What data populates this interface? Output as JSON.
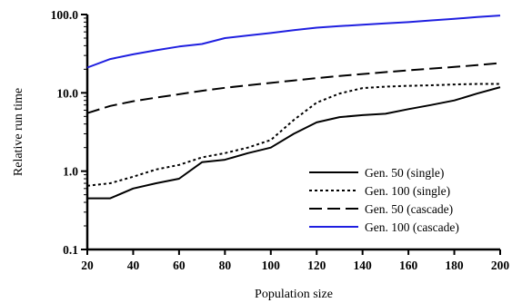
{
  "chart_data": {
    "type": "line",
    "xlabel": "Population size",
    "ylabel": "Relative run time",
    "xlim": [
      20,
      200
    ],
    "ylim": [
      0.1,
      100.0
    ],
    "yscale": "log",
    "xticks": [
      "20",
      "40",
      "60",
      "80",
      "100",
      "120",
      "140",
      "160",
      "180",
      "200"
    ],
    "yticks": [
      "0.1",
      "1.0",
      "10.0",
      "100.0"
    ],
    "legend_position": "bottom-right",
    "series": [
      {
        "name": "Gen. 50 (single)",
        "style": "solid",
        "color": "#000000",
        "x": [
          20,
          30,
          40,
          50,
          60,
          70,
          80,
          90,
          100,
          110,
          120,
          130,
          140,
          150,
          160,
          170,
          180,
          190,
          200
        ],
        "y": [
          0.45,
          0.45,
          0.6,
          0.7,
          0.8,
          1.3,
          1.4,
          1.7,
          2.0,
          3.0,
          4.2,
          4.9,
          5.2,
          5.4,
          6.2,
          7.0,
          8.0,
          9.8,
          11.8
        ]
      },
      {
        "name": "Gen. 100 (single)",
        "style": "dotted",
        "color": "#000000",
        "x": [
          20,
          30,
          40,
          50,
          60,
          70,
          80,
          90,
          100,
          110,
          120,
          130,
          140,
          150,
          160,
          170,
          180,
          190,
          200
        ],
        "y": [
          0.65,
          0.7,
          0.85,
          1.05,
          1.2,
          1.5,
          1.7,
          2.0,
          2.5,
          4.5,
          7.5,
          9.8,
          11.5,
          12.0,
          12.3,
          12.5,
          12.8,
          13.0,
          13.0
        ]
      },
      {
        "name": "Gen. 50 (cascade)",
        "style": "dashed",
        "color": "#000000",
        "x": [
          20,
          30,
          40,
          50,
          60,
          70,
          80,
          90,
          100,
          110,
          120,
          130,
          140,
          150,
          160,
          170,
          180,
          190,
          200
        ],
        "y": [
          5.5,
          6.8,
          7.8,
          8.7,
          9.6,
          10.6,
          11.6,
          12.5,
          13.4,
          14.4,
          15.4,
          16.4,
          17.4,
          18.4,
          19.4,
          20.4,
          21.4,
          22.6,
          24.0
        ]
      },
      {
        "name": "Gen. 100 (cascade)",
        "style": "solid",
        "color": "#1f1fe0",
        "x": [
          20,
          30,
          40,
          50,
          60,
          70,
          80,
          90,
          100,
          110,
          120,
          130,
          140,
          150,
          160,
          170,
          180,
          190,
          200
        ],
        "y": [
          21,
          27,
          31,
          35,
          39,
          42,
          50,
          54,
          58,
          63,
          68,
          71,
          74,
          77,
          80,
          84,
          88,
          93,
          97
        ]
      }
    ]
  }
}
